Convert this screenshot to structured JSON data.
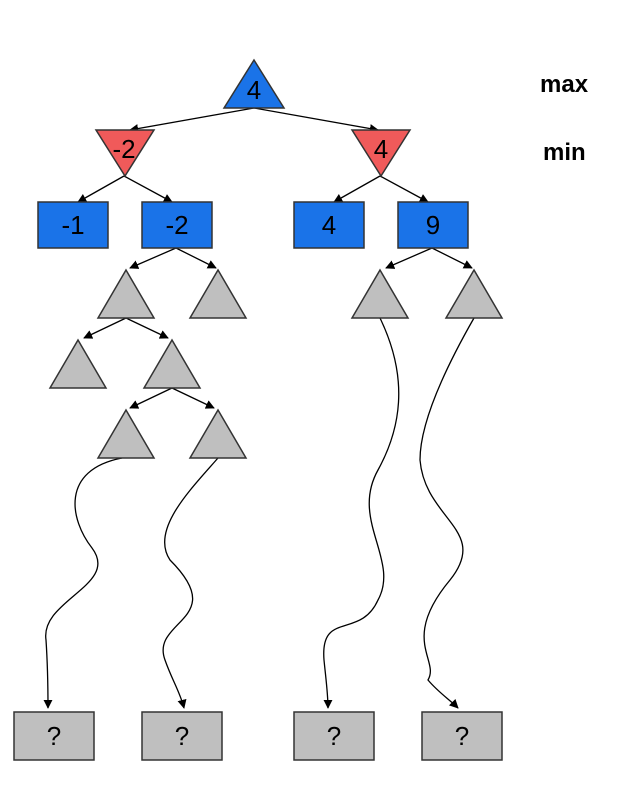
{
  "levels": {
    "max": "max",
    "min": "min"
  },
  "root": {
    "value": "4",
    "color": "#1a73e8"
  },
  "min_nodes": [
    {
      "value": "-2",
      "color": "#f05a5a"
    },
    {
      "value": "4",
      "color": "#f05a5a"
    }
  ],
  "leaves": [
    {
      "value": "-1"
    },
    {
      "value": "-2"
    },
    {
      "value": "4"
    },
    {
      "value": "9"
    }
  ],
  "unknown_leaves": [
    {
      "value": "?"
    },
    {
      "value": "?"
    },
    {
      "value": "?"
    },
    {
      "value": "?"
    }
  ],
  "colors": {
    "max_node": "#1a73e8",
    "min_node": "#f05a5a",
    "unexplored": "#bfbfbf",
    "edge": "#000000"
  }
}
